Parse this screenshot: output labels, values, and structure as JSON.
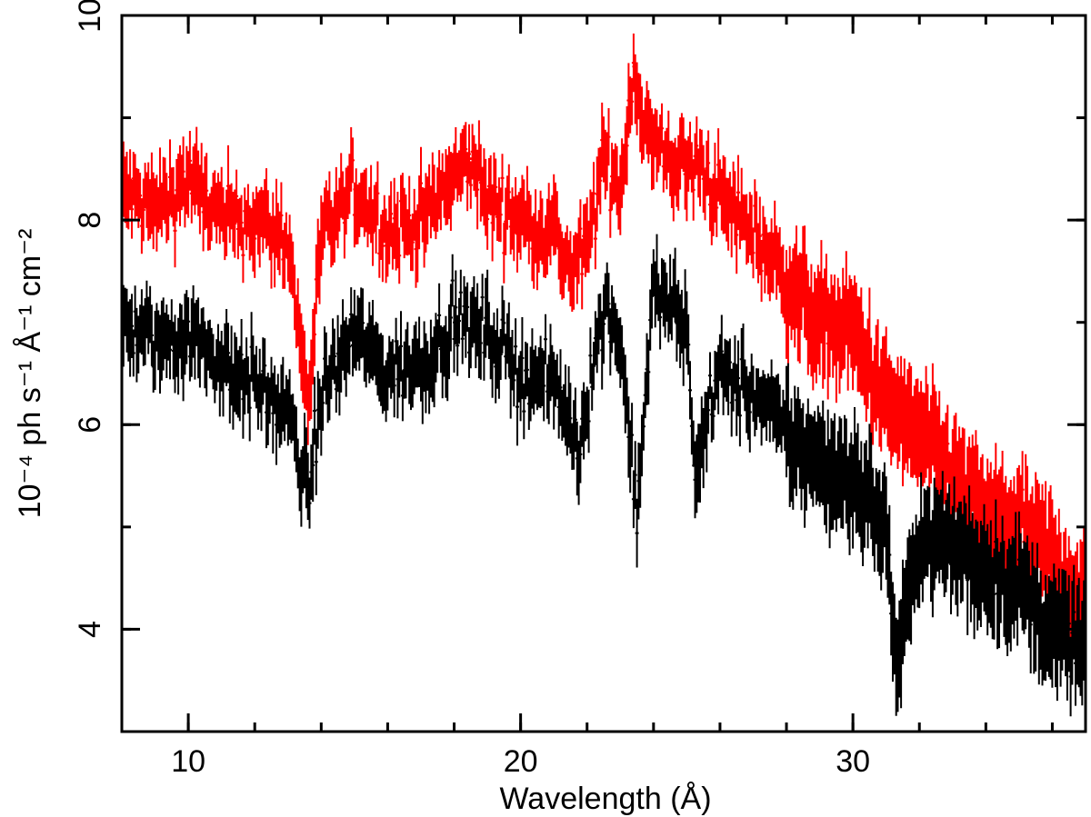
{
  "chart_data": {
    "type": "scatter",
    "title": "",
    "xlabel": "Wavelength (Å)",
    "ylabel": "10⁻⁴ ph s⁻¹ Å⁻¹ cm⁻²",
    "xlim": [
      8,
      37
    ],
    "ylim": [
      3,
      10
    ],
    "x_ticks": [
      10,
      20,
      30
    ],
    "y_ticks": [
      4,
      6,
      8,
      10
    ],
    "x_minor_step": 2,
    "y_minor_step": 1,
    "error_bars": true,
    "grid": false,
    "legend": "none",
    "series": [
      {
        "color": "#ff0000",
        "x": [
          8,
          9,
          10,
          11,
          12,
          13,
          13.6,
          14,
          15,
          16,
          17,
          18,
          18.5,
          19,
          20,
          21,
          21.5,
          22,
          22.5,
          23,
          23.4,
          23.6,
          24,
          24.5,
          25,
          25.5,
          26,
          27,
          28,
          29,
          30,
          31,
          32,
          33,
          34,
          35,
          36,
          37
        ],
        "y": [
          8.3,
          8.1,
          8.4,
          8.0,
          8.0,
          7.8,
          6.2,
          7.8,
          8.3,
          7.9,
          8.0,
          8.4,
          8.6,
          8.2,
          8.0,
          7.9,
          7.5,
          7.7,
          8.6,
          8.3,
          9.5,
          9.1,
          8.7,
          8.6,
          8.5,
          8.5,
          8.2,
          7.9,
          7.4,
          7.0,
          6.9,
          6.2,
          5.9,
          5.5,
          5.1,
          5.0,
          4.7,
          4.2
        ]
      },
      {
        "color": "#000000",
        "x": [
          8,
          9,
          10,
          11,
          12,
          13,
          13.6,
          14,
          15,
          16,
          17,
          18,
          19,
          20,
          21,
          21.8,
          22,
          22.6,
          23,
          23.5,
          24,
          25,
          25.2,
          26,
          27,
          28,
          29,
          30,
          31,
          31.3,
          32,
          33,
          34,
          35,
          36,
          37
        ],
        "y": [
          7.0,
          6.8,
          6.9,
          6.6,
          6.4,
          6.1,
          5.3,
          6.3,
          6.9,
          6.5,
          6.6,
          7.0,
          6.9,
          6.5,
          6.4,
          5.8,
          6.3,
          7.2,
          6.8,
          5.2,
          7.3,
          7.0,
          5.6,
          6.5,
          6.3,
          5.9,
          5.6,
          5.5,
          5.0,
          3.6,
          4.9,
          4.8,
          4.6,
          4.4,
          4.0,
          3.8
        ]
      }
    ]
  }
}
